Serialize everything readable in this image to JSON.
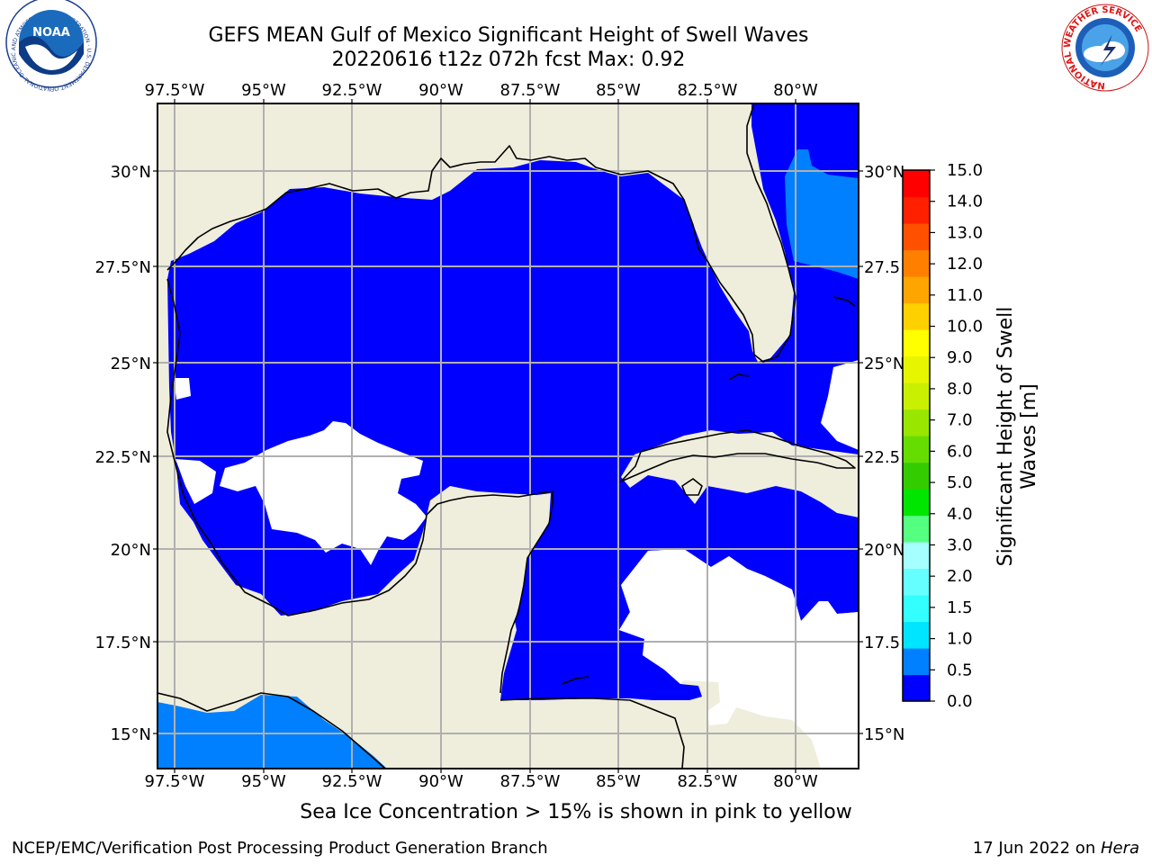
{
  "title": {
    "line1": "GEFS MEAN Gulf of Mexico Significant Height of Swell Waves",
    "line2": "20220616 t12z 072h fcst   Max: 0.92"
  },
  "map": {
    "lon_labels": [
      "97.5°W",
      "95°W",
      "92.5°W",
      "90°W",
      "87.5°W",
      "85°W",
      "82.5°W",
      "80°W"
    ],
    "lat_labels": [
      "30°N",
      "27.5°N",
      "25°N",
      "22.5°N",
      "20°N",
      "17.5°N",
      "15°N"
    ],
    "lat_labels_right": [
      "30°N",
      "27.5",
      "25°N",
      "22.5",
      "20°N",
      "17.5",
      "15°N"
    ],
    "colors": {
      "land": "#efeddc",
      "ocean_low": "#0000ff",
      "ocean_mid": "#0080ff",
      "grid": "#b0b0b0",
      "coast": "#000000"
    }
  },
  "colorbar": {
    "label_line1": "Significant Height of Swell",
    "label_line2": "Waves [m]",
    "ticks": [
      "15.0",
      "14.0",
      "13.0",
      "12.0",
      "11.0",
      "10.0",
      "9.0",
      "8.0",
      "7.0",
      "6.0",
      "5.0",
      "4.0",
      "3.0",
      "2.0",
      "1.5",
      "1.0",
      "0.5",
      "0.0"
    ],
    "colors_bottom_to_top": [
      "#0000ff",
      "#0080ff",
      "#00e5ff",
      "#33ffff",
      "#66ffff",
      "#a6ffff",
      "#55ff80",
      "#00e600",
      "#33cc00",
      "#66dd00",
      "#99e600",
      "#c8f000",
      "#e6f500",
      "#ffff00",
      "#ffd000",
      "#ffa500",
      "#ff7f00",
      "#ff5000",
      "#ff2000",
      "#ff0000"
    ]
  },
  "footer": {
    "note": "Sea Ice Concentration > 15% is shown in pink to yellow",
    "credit": "NCEP/EMC/Verification Post Processing Product Generation Branch",
    "date_prefix": "17 Jun 2022 on ",
    "machine": "Hera"
  },
  "logos": {
    "noaa": "NOAA",
    "noaa_ring": "NATIONAL OCEANIC AND ATMOSPHERIC ADMINISTRATION · U.S. DEPARTMENT OF COMMERCE",
    "nws_ring": "NATIONAL WEATHER SERVICE"
  }
}
